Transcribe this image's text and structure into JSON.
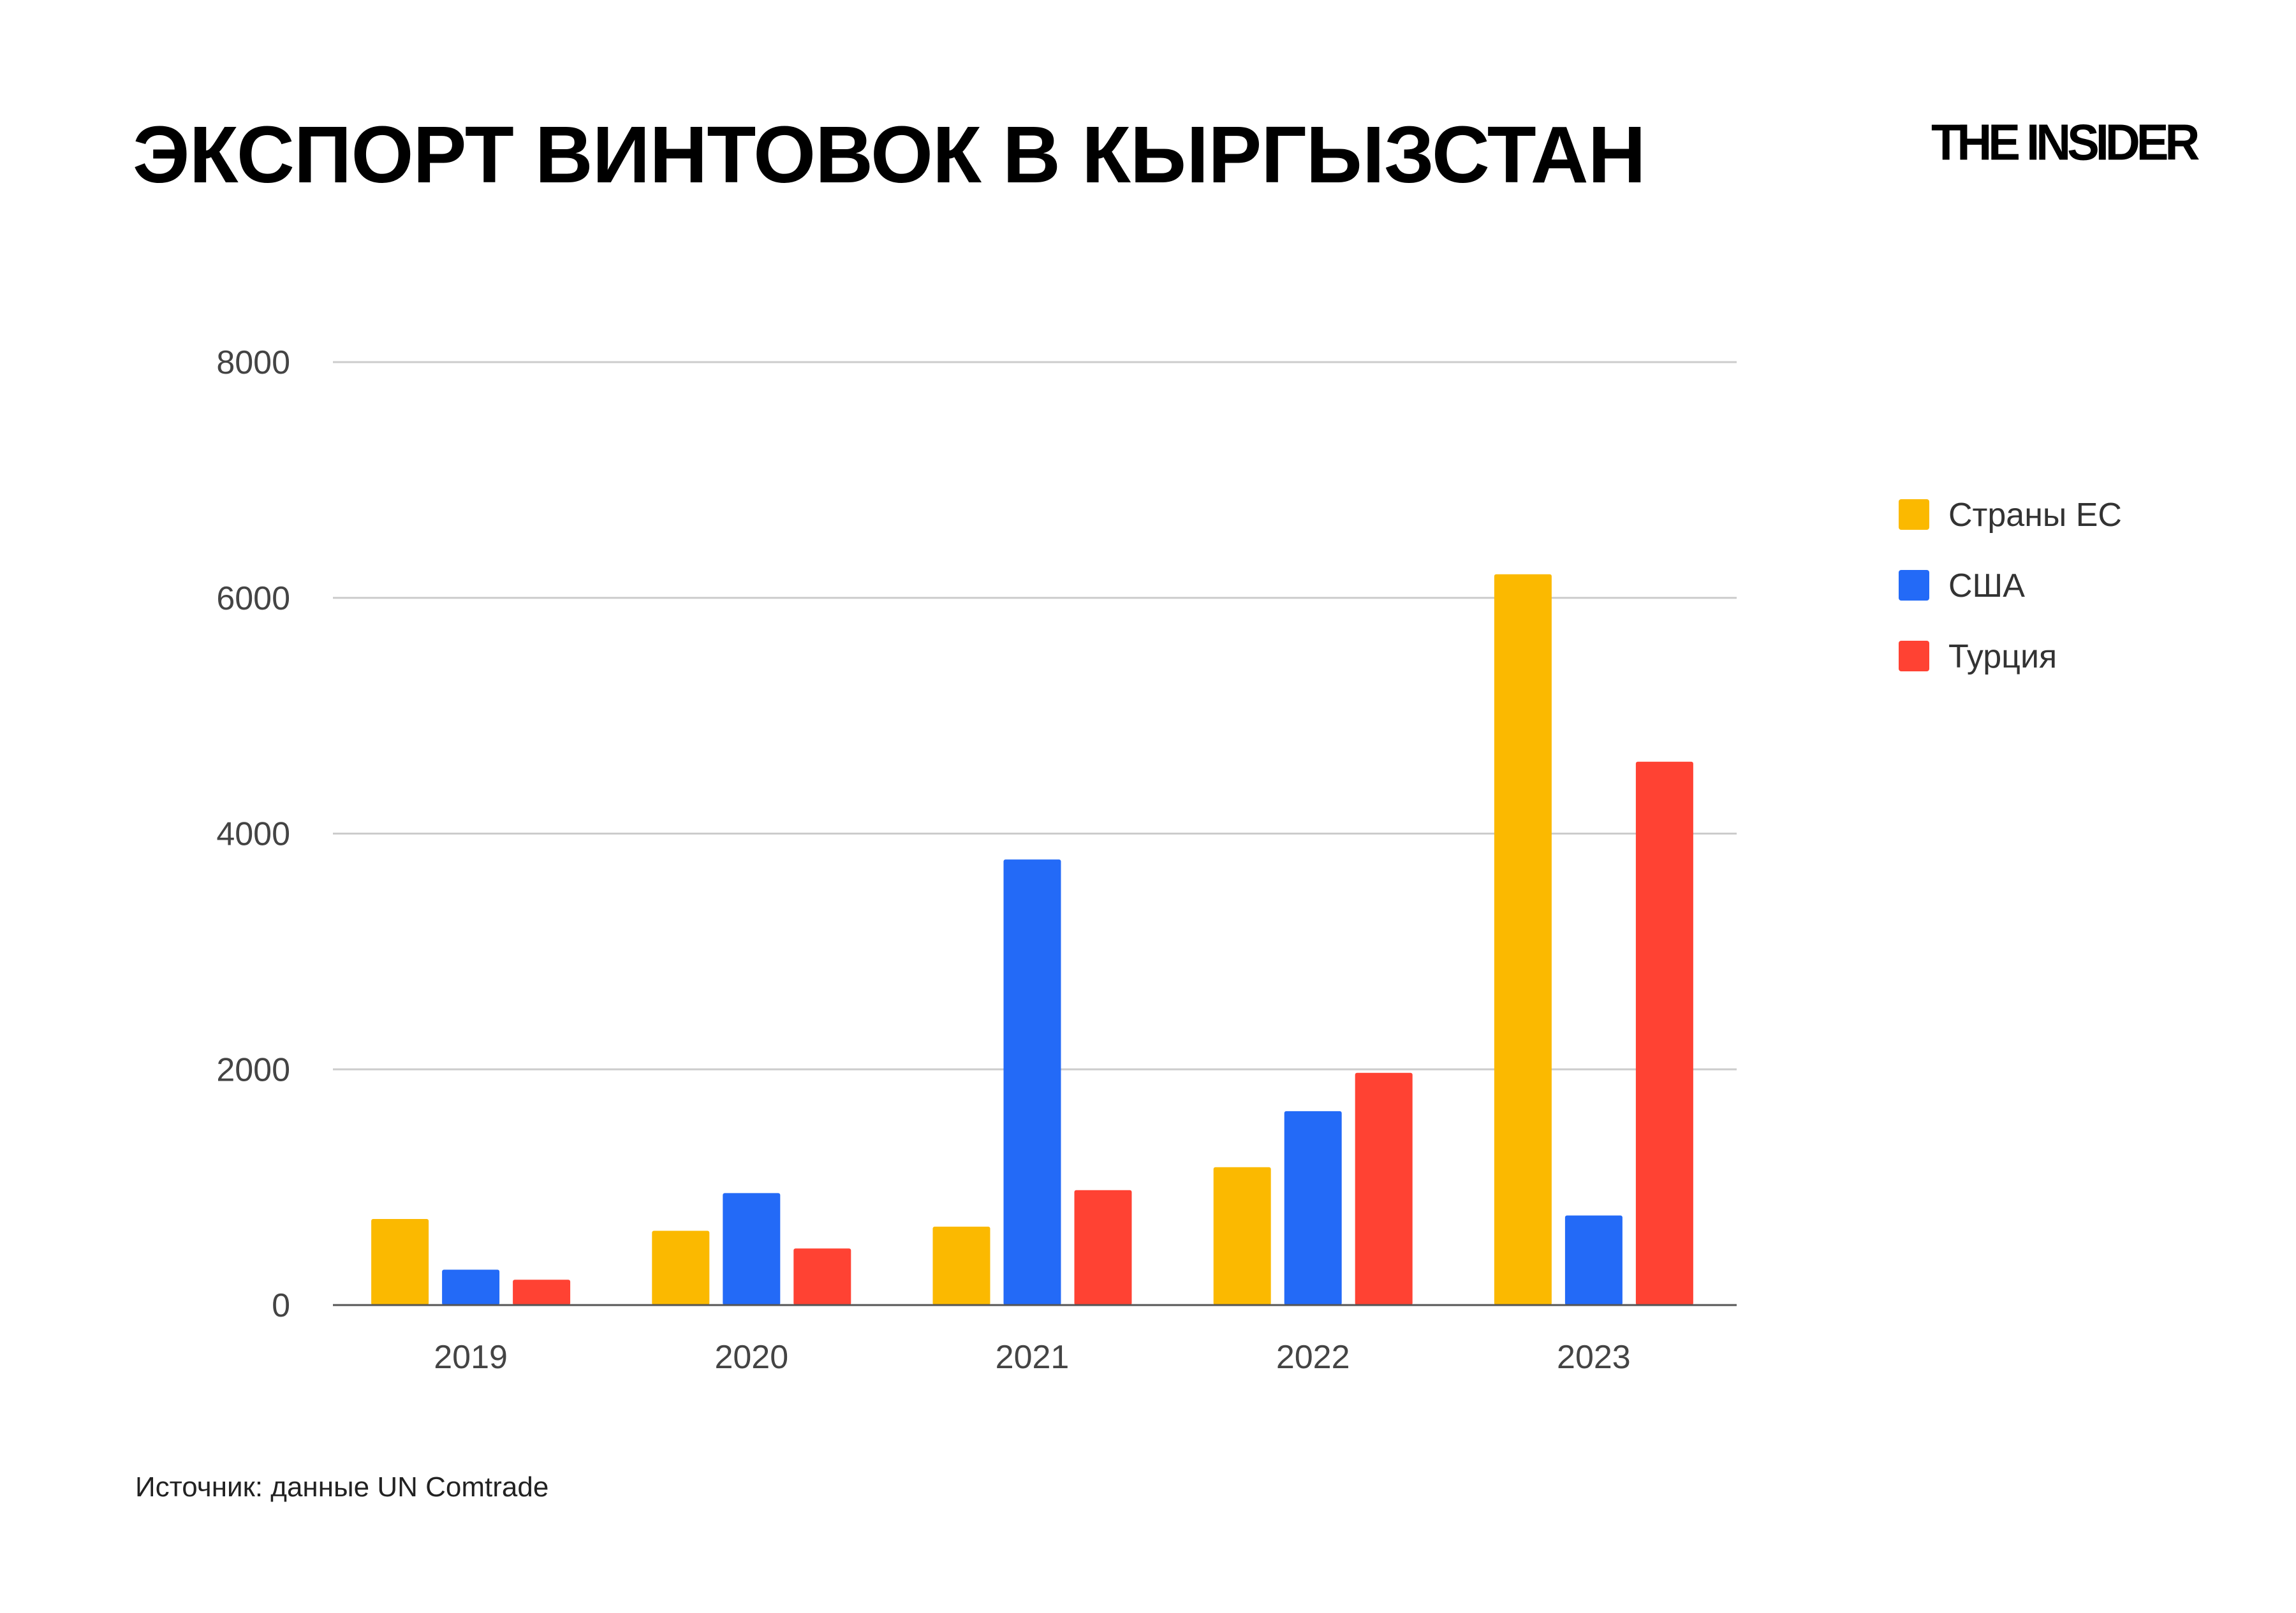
{
  "chart_data": {
    "type": "bar",
    "title": "ЭКСПОРТ ВИНТОВОК В КЫРГЫЗСТАН",
    "categories": [
      "2019",
      "2020",
      "2021",
      "2022",
      "2023"
    ],
    "series": [
      {
        "name": "Страны ЕС",
        "color": "#FBB900",
        "values": [
          730,
          630,
          665,
          1170,
          6200
        ]
      },
      {
        "name": "США",
        "color": "#236AF7",
        "values": [
          300,
          950,
          3780,
          1645,
          760
        ]
      },
      {
        "name": "Турция",
        "color": "#FF4233",
        "values": [
          215,
          480,
          975,
          1970,
          4610
        ]
      }
    ],
    "ylim": [
      0,
      8000
    ],
    "yticks": [
      "0",
      "2000",
      "4000",
      "6000",
      "8000"
    ],
    "xlabel": "",
    "ylabel": "",
    "grid": true,
    "legend": "right"
  },
  "brand": "THE INSIDER",
  "source": "Источник: данные UN Comtrade"
}
